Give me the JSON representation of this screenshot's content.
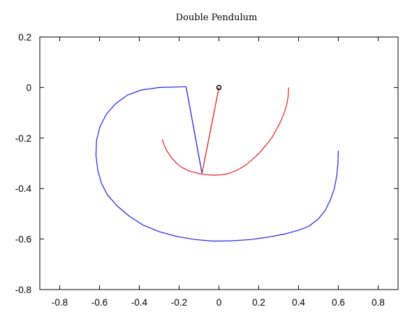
{
  "chart_data": {
    "type": "line",
    "title": "Double Pendulum",
    "xlabel": "",
    "ylabel": "",
    "xlim": [
      -0.9,
      0.9
    ],
    "ylim": [
      -0.8,
      0.2
    ],
    "x_ticks": [
      -0.8,
      -0.6,
      -0.4,
      -0.2,
      0,
      0.2,
      0.4,
      0.6,
      0.8
    ],
    "y_ticks": [
      0.2,
      0,
      -0.2,
      -0.4,
      -0.6,
      -0.8
    ],
    "x_tick_labels": [
      "-0.8",
      "-0.6",
      "-0.4",
      "-0.2",
      "0",
      "0.2",
      "0.4",
      "0.6",
      "0.8"
    ],
    "y_tick_labels": [
      "0.2",
      "0",
      "-0.2",
      "-0.4",
      "-0.6",
      "-0.8"
    ],
    "grid": false,
    "colors": {
      "bob1": "#e02020",
      "bob2": "#2020e0",
      "axis": "#000000"
    },
    "pivot": {
      "x": 0.0,
      "y": 0.0
    },
    "series": [
      {
        "color": "#e02020",
        "x": [
          0.35,
          0.348,
          0.34,
          0.328,
          0.31,
          0.29,
          0.265,
          0.235,
          0.2,
          0.165,
          0.13,
          0.09,
          0.05,
          0.01,
          -0.03,
          -0.07,
          -0.11,
          -0.15,
          -0.185,
          -0.215,
          -0.24,
          -0.26,
          -0.275,
          -0.285
        ],
        "y": [
          0.0,
          -0.035,
          -0.07,
          -0.1,
          -0.135,
          -0.165,
          -0.2,
          -0.23,
          -0.262,
          -0.287,
          -0.31,
          -0.328,
          -0.34,
          -0.346,
          -0.347,
          -0.345,
          -0.339,
          -0.33,
          -0.317,
          -0.298,
          -0.276,
          -0.253,
          -0.228,
          -0.205
        ]
      },
      {
        "color": "#2020e0",
        "x": [
          0.6,
          0.598,
          0.592,
          0.58,
          0.56,
          0.535,
          0.5,
          0.45,
          0.4,
          0.33,
          0.25,
          0.16,
          0.06,
          -0.03,
          -0.12,
          -0.21,
          -0.3,
          -0.38,
          -0.45,
          -0.51,
          -0.56,
          -0.59,
          -0.608,
          -0.618,
          -0.615,
          -0.598,
          -0.565,
          -0.52,
          -0.46,
          -0.39,
          -0.3,
          -0.21,
          -0.165
        ],
        "y": [
          -0.25,
          -0.3,
          -0.35,
          -0.4,
          -0.445,
          -0.485,
          -0.52,
          -0.55,
          -0.565,
          -0.58,
          -0.592,
          -0.602,
          -0.607,
          -0.608,
          -0.602,
          -0.59,
          -0.571,
          -0.545,
          -0.51,
          -0.47,
          -0.425,
          -0.38,
          -0.33,
          -0.27,
          -0.21,
          -0.155,
          -0.105,
          -0.065,
          -0.03,
          -0.01,
          0.0,
          0.002,
          0.003
        ]
      }
    ],
    "rods": [
      {
        "color": "#e02020",
        "x": [
          0.0,
          -0.085
        ],
        "y": [
          0.0,
          -0.34
        ]
      },
      {
        "color": "#2020e0",
        "x": [
          -0.085,
          -0.165
        ],
        "y": [
          -0.34,
          0.003
        ]
      }
    ]
  }
}
